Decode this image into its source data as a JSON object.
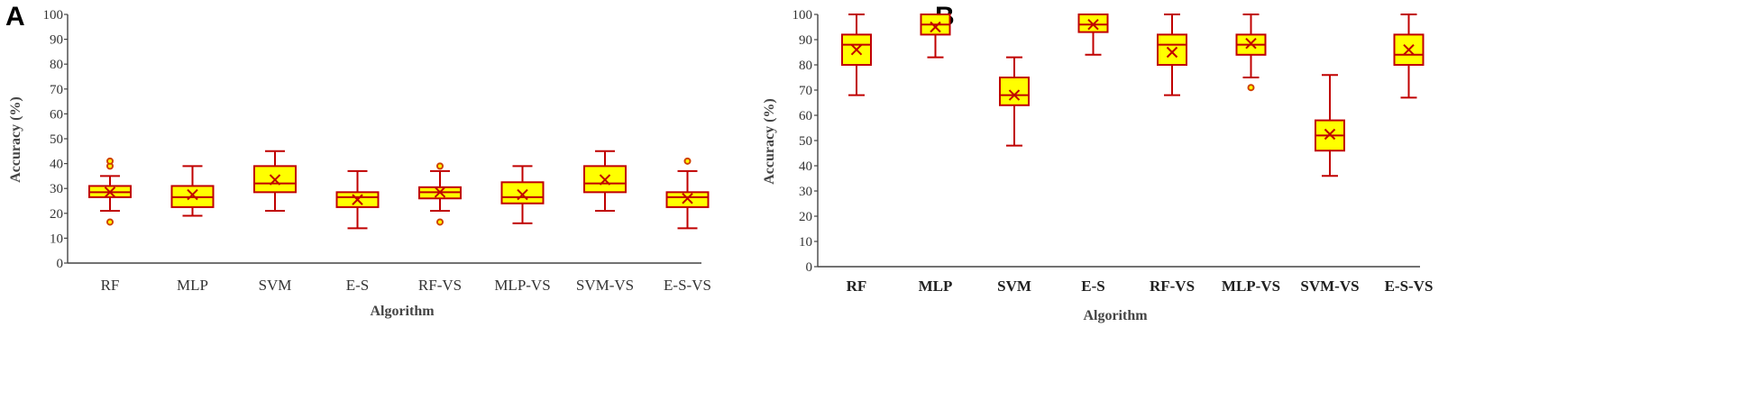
{
  "chart_data": [
    {
      "type": "box",
      "panel": "A",
      "xlabel": "Algorithm",
      "ylabel": "Accuracy  (%)",
      "ylim": [
        0,
        100
      ],
      "yticks": [
        0,
        10,
        20,
        30,
        40,
        50,
        60,
        70,
        80,
        90,
        100
      ],
      "categories": [
        "RF",
        "MLP",
        "SVM",
        "E-S",
        "RF-VS",
        "MLP-VS",
        "SVM-VS",
        "E-S-VS"
      ],
      "boxes": [
        {
          "min": 21,
          "q1": 26.5,
          "median": 28.5,
          "q3": 31,
          "max": 35,
          "mean": 28.5,
          "outliers": [
            16.5,
            39,
            41
          ]
        },
        {
          "min": 19,
          "q1": 22.5,
          "median": 26.5,
          "q3": 31,
          "max": 39,
          "mean": 27.5,
          "outliers": []
        },
        {
          "min": 21,
          "q1": 28.5,
          "median": 32,
          "q3": 39,
          "max": 45,
          "mean": 33.5,
          "outliers": []
        },
        {
          "min": 14,
          "q1": 22.5,
          "median": 26.5,
          "q3": 28.5,
          "max": 37,
          "mean": 25.5,
          "outliers": []
        },
        {
          "min": 21,
          "q1": 26,
          "median": 28.5,
          "q3": 30.5,
          "max": 37,
          "mean": 28.5,
          "outliers": [
            16.5,
            39
          ]
        },
        {
          "min": 16,
          "q1": 24,
          "median": 26.5,
          "q3": 32.5,
          "max": 39,
          "mean": 27.5,
          "outliers": []
        },
        {
          "min": 21,
          "q1": 28.5,
          "median": 32,
          "q3": 39,
          "max": 45,
          "mean": 33.5,
          "outliers": []
        },
        {
          "min": 14,
          "q1": 22.5,
          "median": 26.5,
          "q3": 28.5,
          "max": 37,
          "mean": 26,
          "outliers": [
            41
          ]
        }
      ]
    },
    {
      "type": "box",
      "panel": "B",
      "xlabel": "Algorithm",
      "ylabel": "Accuracy  (%)",
      "ylim": [
        0,
        100
      ],
      "yticks": [
        0,
        10,
        20,
        30,
        40,
        50,
        60,
        70,
        80,
        90,
        100
      ],
      "categories": [
        "RF",
        "MLP",
        "SVM",
        "E-S",
        "RF-VS",
        "MLP-VS",
        "SVM-VS",
        "E-S-VS"
      ],
      "boxes": [
        {
          "min": 68,
          "q1": 80,
          "median": 88,
          "q3": 92,
          "max": 100,
          "mean": 86,
          "outliers": []
        },
        {
          "min": 83,
          "q1": 92,
          "median": 96,
          "q3": 100,
          "max": 100,
          "mean": 95,
          "outliers": []
        },
        {
          "min": 48,
          "q1": 64,
          "median": 68,
          "q3": 75,
          "max": 83,
          "mean": 68,
          "outliers": []
        },
        {
          "min": 84,
          "q1": 93,
          "median": 96,
          "q3": 100,
          "max": 100,
          "mean": 96,
          "outliers": []
        },
        {
          "min": 68,
          "q1": 80,
          "median": 88,
          "q3": 92,
          "max": 100,
          "mean": 85,
          "outliers": []
        },
        {
          "min": 75,
          "q1": 84,
          "median": 88,
          "q3": 92,
          "max": 100,
          "mean": 88.5,
          "outliers": [
            71
          ]
        },
        {
          "min": 36,
          "q1": 46,
          "median": 52,
          "q3": 58,
          "max": 76,
          "mean": 52.5,
          "outliers": []
        },
        {
          "min": 67,
          "q1": 80,
          "median": 84,
          "q3": 92,
          "max": 100,
          "mean": 86,
          "outliers": []
        }
      ]
    }
  ]
}
